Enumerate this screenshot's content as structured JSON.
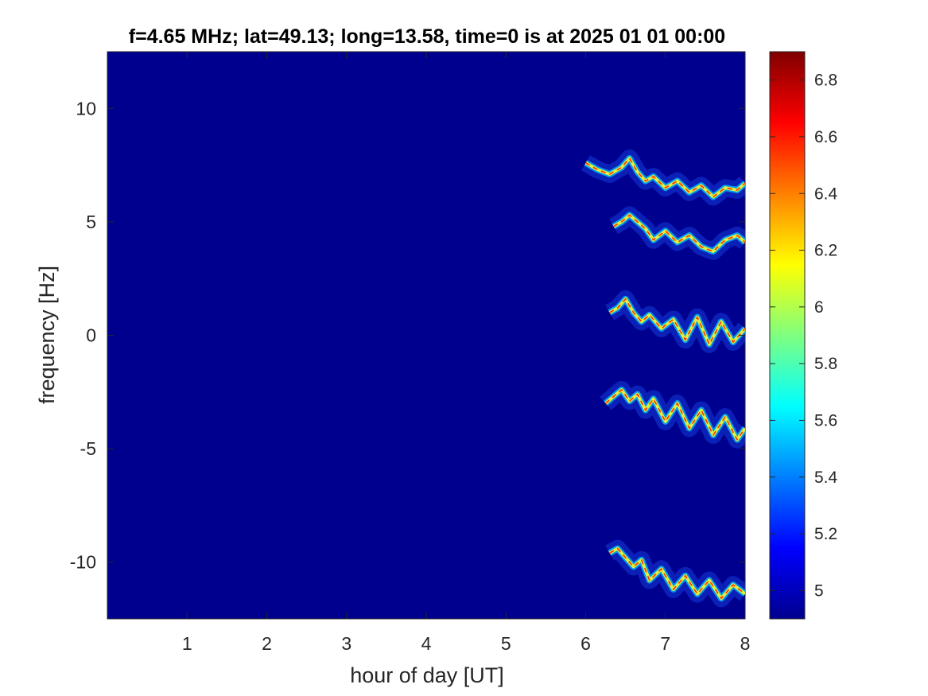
{
  "chart_data": {
    "type": "heatmap",
    "title": "f=4.65 MHz;  lat=49.13; long=13.58, time=0 is at 2025 01 01 00:00",
    "xlabel": "hour of day [UT]",
    "ylabel": "frequency [Hz]",
    "xlim": [
      0,
      8
    ],
    "ylim": [
      -12.5,
      12.5
    ],
    "xticks": [
      "1",
      "2",
      "3",
      "4",
      "5",
      "6",
      "7",
      "8"
    ],
    "xtick_values": [
      1,
      2,
      3,
      4,
      5,
      6,
      7,
      8
    ],
    "yticks": [
      "10",
      "5",
      "0",
      "-5",
      "-10"
    ],
    "ytick_values": [
      10,
      5,
      0,
      -5,
      -10
    ],
    "colorbar": {
      "colormap": "jet",
      "clim": [
        4.9,
        6.9
      ],
      "ticks": [
        "6.8",
        "6.6",
        "6.4",
        "6.2",
        "6",
        "5.8",
        "5.6",
        "5.4",
        "5.2",
        "5"
      ],
      "tick_values": [
        6.8,
        6.6,
        6.4,
        6.2,
        6.0,
        5.8,
        5.6,
        5.4,
        5.2,
        5.0
      ]
    },
    "background_color": "#00008f",
    "traces": [
      {
        "x": [
          6.0,
          6.15,
          6.3,
          6.45,
          6.55,
          6.65,
          6.75,
          6.85,
          7.0,
          7.15,
          7.3,
          7.45,
          7.6,
          7.75,
          7.9,
          8.0
        ],
        "y": [
          7.6,
          7.3,
          7.1,
          7.4,
          7.8,
          7.2,
          6.8,
          7.0,
          6.5,
          6.8,
          6.3,
          6.6,
          6.1,
          6.5,
          6.4,
          6.7
        ]
      },
      {
        "x": [
          6.35,
          6.45,
          6.55,
          6.65,
          6.75,
          6.85,
          7.0,
          7.15,
          7.3,
          7.45,
          7.6,
          7.75,
          7.9,
          8.0
        ],
        "y": [
          4.8,
          5.0,
          5.3,
          5.0,
          4.7,
          4.2,
          4.6,
          4.1,
          4.4,
          3.9,
          3.7,
          4.2,
          4.4,
          4.1
        ]
      },
      {
        "x": [
          6.3,
          6.4,
          6.5,
          6.6,
          6.7,
          6.8,
          6.95,
          7.1,
          7.25,
          7.4,
          7.55,
          7.7,
          7.85,
          8.0
        ],
        "y": [
          1.0,
          1.2,
          1.6,
          1.0,
          0.6,
          0.9,
          0.3,
          0.7,
          -0.2,
          0.8,
          -0.4,
          0.6,
          -0.3,
          0.3
        ]
      },
      {
        "x": [
          6.25,
          6.35,
          6.45,
          6.55,
          6.65,
          6.75,
          6.85,
          7.0,
          7.15,
          7.3,
          7.45,
          7.6,
          7.75,
          7.9,
          8.0
        ],
        "y": [
          -3.0,
          -2.7,
          -2.4,
          -2.9,
          -2.6,
          -3.3,
          -2.8,
          -3.8,
          -3.0,
          -4.1,
          -3.3,
          -4.4,
          -3.6,
          -4.6,
          -4.1
        ]
      },
      {
        "x": [
          6.3,
          6.4,
          6.5,
          6.6,
          6.7,
          6.8,
          6.95,
          7.1,
          7.25,
          7.4,
          7.55,
          7.7,
          7.85,
          8.0
        ],
        "y": [
          -9.6,
          -9.4,
          -9.8,
          -10.2,
          -9.9,
          -10.8,
          -10.3,
          -11.2,
          -10.6,
          -11.4,
          -10.8,
          -11.6,
          -11.0,
          -11.4
        ]
      }
    ]
  }
}
